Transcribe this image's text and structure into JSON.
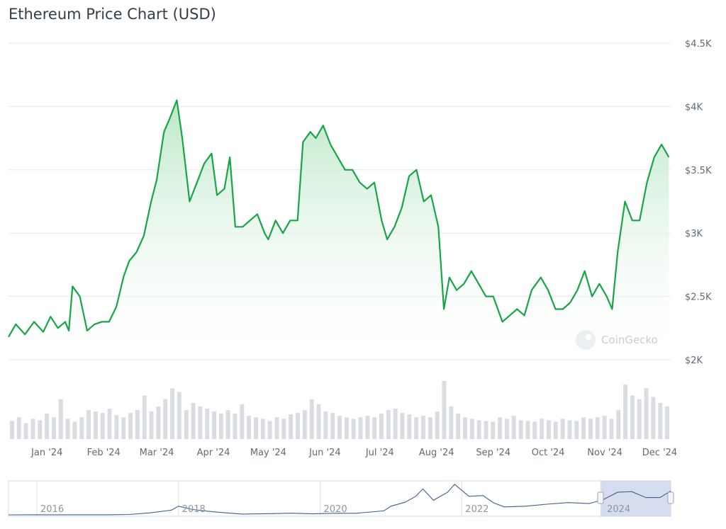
{
  "title": "Ethereum Price Chart (USD)",
  "watermark": "CoinGecko",
  "colors": {
    "line": "#18a548",
    "fill_top": "#b7e6c3",
    "grid": "#e6e9ed",
    "volume": "#d9dde2",
    "navigator_line": "#3f5f8f",
    "navigator_mask": "#c7d2e8"
  },
  "chart_data": [
    {
      "type": "area",
      "title": "Ethereum Price Chart (USD)",
      "xlabel": "",
      "ylabel": "",
      "x_tick_labels": [
        "Jan '24",
        "Feb '24",
        "Mar '24",
        "Apr '24",
        "May '24",
        "Jun '24",
        "Jul '24",
        "Aug '24",
        "Sep '24",
        "Oct '24",
        "Nov '24",
        "Dec '24"
      ],
      "y_tick_labels": [
        "$2K",
        "$2.5K",
        "$3K",
        "$3.5K",
        "$4K",
        "$4.5K"
      ],
      "ylim": [
        2000,
        4500
      ],
      "xlim": [
        "2023-12-11",
        "2024-12-07"
      ],
      "grid": true,
      "series": [
        {
          "x": [
            "2023-12-11",
            "2023-12-15",
            "2023-12-20",
            "2023-12-25",
            "2023-12-30",
            "2024-01-03",
            "2024-01-07",
            "2024-01-11",
            "2024-01-13",
            "2024-01-15",
            "2024-01-19",
            "2024-01-23",
            "2024-01-27",
            "2024-01-31",
            "2024-02-04",
            "2024-02-08",
            "2024-02-12",
            "2024-02-15",
            "2024-02-19",
            "2024-02-23",
            "2024-02-27",
            "2024-03-01",
            "2024-03-05",
            "2024-03-08",
            "2024-03-12",
            "2024-03-15",
            "2024-03-19",
            "2024-03-23",
            "2024-03-27",
            "2024-03-31",
            "2024-04-03",
            "2024-04-07",
            "2024-04-10",
            "2024-04-13",
            "2024-04-17",
            "2024-04-21",
            "2024-04-25",
            "2024-04-29",
            "2024-05-01",
            "2024-05-05",
            "2024-05-09",
            "2024-05-13",
            "2024-05-17",
            "2024-05-20",
            "2024-05-24",
            "2024-05-27",
            "2024-05-31",
            "2024-06-04",
            "2024-06-08",
            "2024-06-12",
            "2024-06-16",
            "2024-06-20",
            "2024-06-24",
            "2024-06-28",
            "2024-07-02",
            "2024-07-05",
            "2024-07-09",
            "2024-07-13",
            "2024-07-17",
            "2024-07-21",
            "2024-07-25",
            "2024-07-29",
            "2024-08-02",
            "2024-08-05",
            "2024-08-08",
            "2024-08-12",
            "2024-08-16",
            "2024-08-20",
            "2024-08-24",
            "2024-08-28",
            "2024-09-01",
            "2024-09-06",
            "2024-09-10",
            "2024-09-14",
            "2024-09-18",
            "2024-09-22",
            "2024-09-27",
            "2024-10-01",
            "2024-10-05",
            "2024-10-09",
            "2024-10-13",
            "2024-10-17",
            "2024-10-21",
            "2024-10-25",
            "2024-10-29",
            "2024-11-02",
            "2024-11-05",
            "2024-11-08",
            "2024-11-12",
            "2024-11-16",
            "2024-11-20",
            "2024-11-24",
            "2024-11-28",
            "2024-12-02",
            "2024-12-06"
          ],
          "values": [
            2180,
            2280,
            2200,
            2300,
            2220,
            2340,
            2250,
            2300,
            2230,
            2580,
            2500,
            2230,
            2280,
            2300,
            2300,
            2420,
            2660,
            2780,
            2850,
            2980,
            3250,
            3420,
            3800,
            3900,
            4050,
            3750,
            3250,
            3400,
            3550,
            3630,
            3300,
            3350,
            3600,
            3050,
            3050,
            3100,
            3150,
            3000,
            2950,
            3100,
            3000,
            3100,
            3100,
            3720,
            3800,
            3750,
            3850,
            3700,
            3600,
            3500,
            3500,
            3400,
            3350,
            3400,
            3100,
            2950,
            3050,
            3200,
            3450,
            3500,
            3250,
            3300,
            3050,
            2400,
            2650,
            2550,
            2600,
            2700,
            2600,
            2500,
            2500,
            2300,
            2350,
            2400,
            2350,
            2550,
            2650,
            2550,
            2400,
            2400,
            2450,
            2550,
            2700,
            2500,
            2600,
            2500,
            2400,
            2850,
            3250,
            3100,
            3100,
            3400,
            3600,
            3700,
            3600
          ]
        }
      ]
    },
    {
      "type": "bar",
      "title": "",
      "xlabel": "",
      "ylabel": "",
      "note_visible_only_as_bars": true,
      "series": [
        {
          "values": [
            25,
            30,
            22,
            28,
            26,
            35,
            30,
            55,
            28,
            24,
            30,
            40,
            38,
            36,
            42,
            33,
            30,
            36,
            40,
            60,
            38,
            45,
            55,
            70,
            65,
            40,
            50,
            45,
            42,
            38,
            35,
            40,
            35,
            48,
            32,
            30,
            28,
            25,
            30,
            28,
            34,
            36,
            40,
            55,
            48,
            38,
            36,
            32,
            30,
            28,
            30,
            32,
            30,
            35,
            40,
            42,
            36,
            34,
            30,
            32,
            30,
            38,
            80,
            45,
            35,
            30,
            28,
            26,
            25,
            24,
            30,
            28,
            32,
            26,
            25,
            24,
            28,
            26,
            24,
            28,
            26,
            25,
            30,
            28,
            30,
            32,
            28,
            40,
            75,
            60,
            55,
            70,
            58,
            50,
            45
          ]
        }
      ]
    },
    {
      "type": "line",
      "title": "",
      "xlabel": "",
      "ylabel": "",
      "x_tick_labels": [
        "2016",
        "2018",
        "2020",
        "2022",
        "2024"
      ],
      "series": [
        {
          "x": [
            2015.6,
            2016.0,
            2016.5,
            2017.0,
            2017.3,
            2017.6,
            2017.9,
            2018.0,
            2018.2,
            2018.5,
            2018.9,
            2019.3,
            2019.6,
            2019.9,
            2020.2,
            2020.5,
            2020.9,
            2021.0,
            2021.2,
            2021.35,
            2021.45,
            2021.6,
            2021.8,
            2021.9,
            2022.1,
            2022.3,
            2022.45,
            2022.6,
            2022.9,
            2023.2,
            2023.5,
            2023.8,
            2024.0,
            2024.2,
            2024.4,
            2024.6,
            2024.8,
            2024.95
          ],
          "values": [
            2,
            10,
            12,
            10,
            50,
            300,
            700,
            1300,
            800,
            450,
            120,
            180,
            250,
            150,
            230,
            240,
            600,
            1300,
            1900,
            2800,
            3900,
            2200,
            3400,
            4600,
            2800,
            2900,
            1800,
            1200,
            1300,
            1600,
            1850,
            1700,
            2300,
            3400,
            3500,
            2600,
            2600,
            3600
          ]
        }
      ]
    }
  ]
}
